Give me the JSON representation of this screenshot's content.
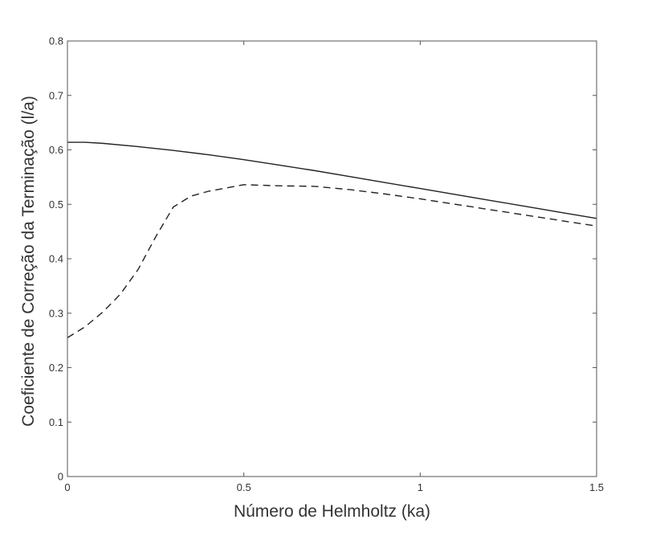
{
  "chart_data": {
    "type": "line",
    "title": "",
    "xlabel": "Número de Helmholtz (ka)",
    "ylabel": "Coeficiente de Correção da Terminação (l/a)",
    "xlim": [
      0,
      1.5
    ],
    "ylim": [
      0,
      0.8
    ],
    "x_ticks": [
      0,
      0.5,
      1,
      1.5
    ],
    "x_tick_labels": [
      "0",
      "0.5",
      "1",
      "1.5"
    ],
    "y_ticks": [
      0,
      0.1,
      0.2,
      0.3,
      0.4,
      0.5,
      0.6,
      0.7,
      0.8
    ],
    "y_tick_labels": [
      "0",
      "0.1",
      "0.2",
      "0.3",
      "0.4",
      "0.5",
      "0.6",
      "0.7",
      "0.8"
    ],
    "grid": false,
    "legend": "none",
    "series": [
      {
        "style": "solid",
        "color": "#222222",
        "x": [
          0,
          0.05,
          0.1,
          0.2,
          0.3,
          0.4,
          0.5,
          0.6,
          0.7,
          0.8,
          0.9,
          1.0,
          1.1,
          1.2,
          1.3,
          1.4,
          1.5
        ],
        "y": [
          0.614,
          0.614,
          0.612,
          0.606,
          0.599,
          0.591,
          0.582,
          0.572,
          0.562,
          0.551,
          0.54,
          0.529,
          0.518,
          0.507,
          0.496,
          0.485,
          0.474
        ]
      },
      {
        "style": "dashed",
        "color": "#222222",
        "x": [
          0,
          0.05,
          0.1,
          0.15,
          0.2,
          0.25,
          0.3,
          0.35,
          0.4,
          0.45,
          0.5,
          0.55,
          0.6,
          0.7,
          0.8,
          0.9,
          1.0,
          1.1,
          1.2,
          1.3,
          1.4,
          1.5
        ],
        "y": [
          0.255,
          0.275,
          0.302,
          0.335,
          0.38,
          0.44,
          0.495,
          0.515,
          0.524,
          0.53,
          0.536,
          0.535,
          0.534,
          0.533,
          0.527,
          0.519,
          0.51,
          0.5,
          0.49,
          0.48,
          0.47,
          0.46
        ]
      }
    ]
  }
}
